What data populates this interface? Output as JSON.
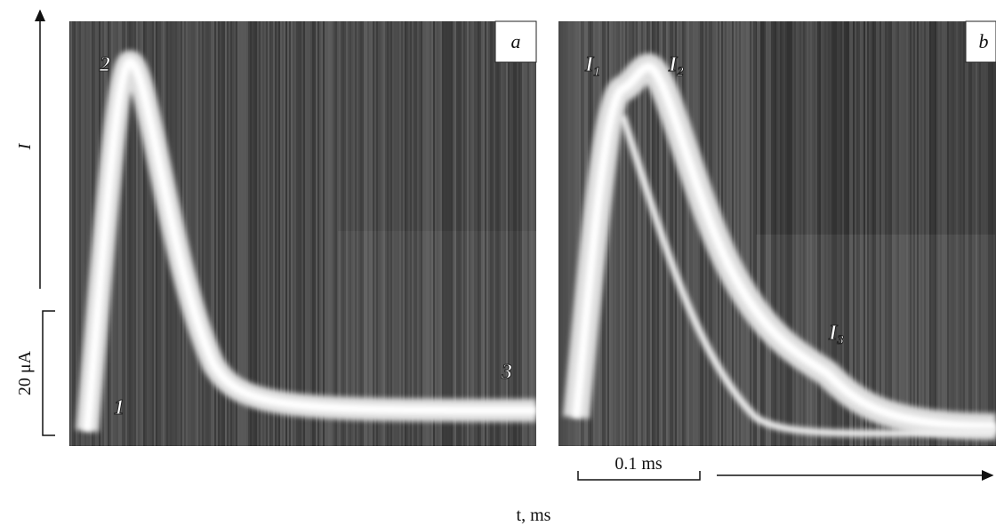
{
  "y_axis": {
    "label": "I",
    "scale": "20 μA"
  },
  "x_axis": {
    "label": "t, ms",
    "scale": "0.1 ms"
  },
  "panels": [
    {
      "label": "a",
      "points": [
        "1",
        "2",
        "3"
      ]
    },
    {
      "label": "b",
      "points": [
        {
          "main": "I",
          "sub": "1"
        },
        {
          "main": "I",
          "sub": "2"
        },
        {
          "main": "I",
          "sub": "3"
        }
      ]
    }
  ]
}
